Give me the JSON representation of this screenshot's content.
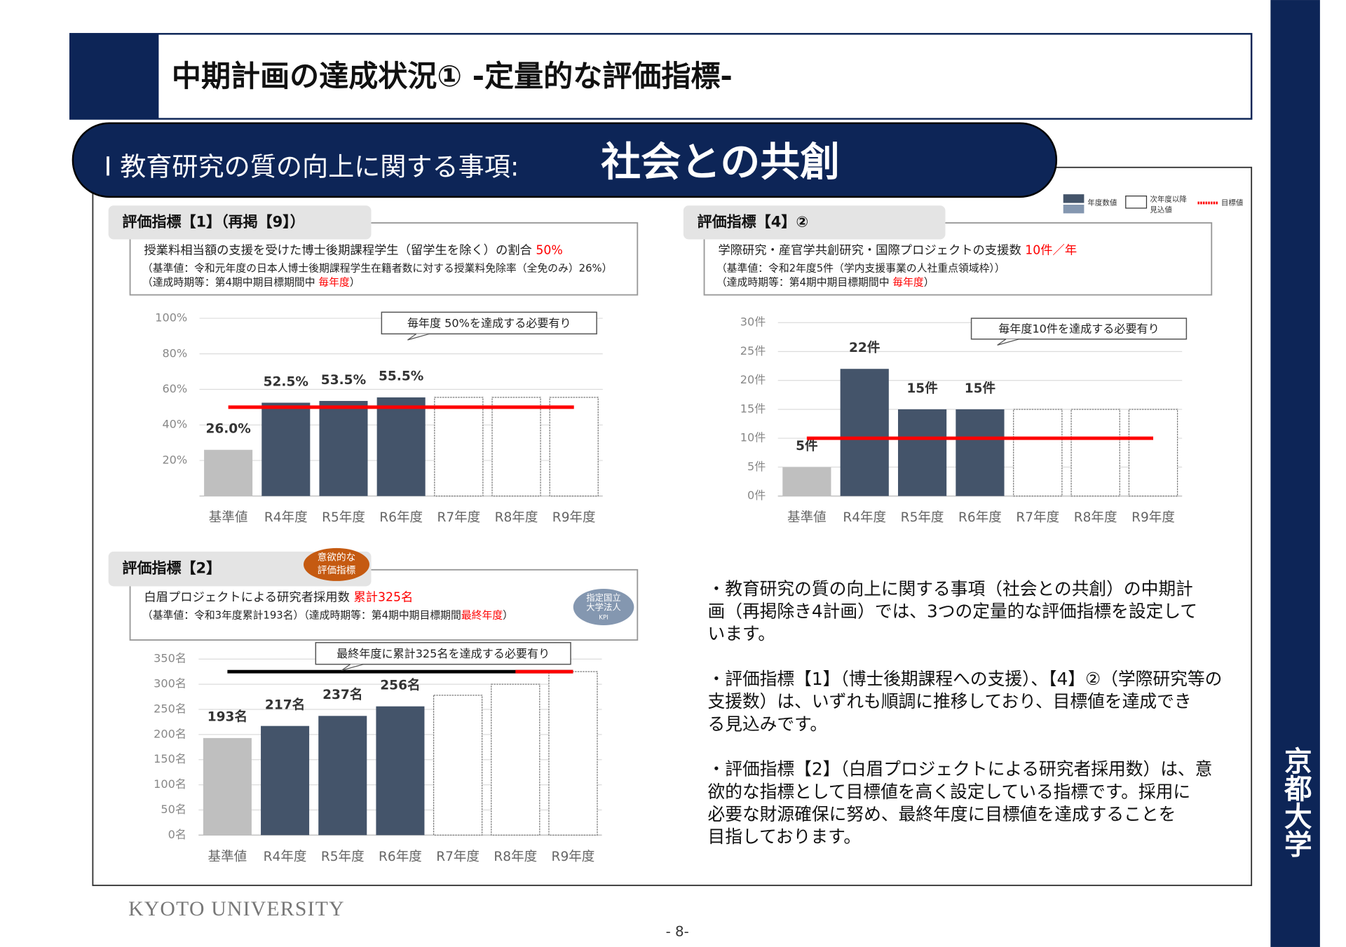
{
  "header": {
    "title": "中期計画の達成状況①  -定量的な評価指標-"
  },
  "section": {
    "label": "Ⅰ  教育研究の質の向上に関する事項:",
    "emphasis": "社会との共創"
  },
  "legend": [
    {
      "lines": [
        "年度数値"
      ]
    },
    {
      "lines": [
        "次年度以降",
        "見込値"
      ]
    },
    {
      "lines": [
        "目標値"
      ]
    }
  ],
  "chart_data": [
    {
      "type": "bar",
      "indicator": "評価指標【1】（再掲【9】）",
      "description": [
        {
          "text": "授業料相当額の支援を受けた博士後期課程学生（留学生を除く）の割合 "
        },
        {
          "text": "50%",
          "highlight": true
        }
      ],
      "notes": [
        [
          {
            "text": "（基準値：令和元年度の日本人博士後期課程学生在籍者数に対する授業料免除率（全免のみ）26%）"
          }
        ],
        [
          {
            "text": "（達成時期等：第4期中期目標期間中 "
          },
          {
            "text": "毎年度",
            "highlight": true
          },
          {
            "text": "）"
          }
        ]
      ],
      "callout": "毎年度 50%を達成する必要有り",
      "categories": [
        "基準値",
        "R4年度",
        "R5年度",
        "R6年度",
        "R7年度",
        "R8年度",
        "R9年度"
      ],
      "values": [
        26.0,
        52.5,
        53.5,
        55.5,
        null,
        null,
        null
      ],
      "value_labels": [
        "26.0%",
        "52.5%",
        "53.5%",
        "55.5%",
        null,
        null,
        null
      ],
      "projected": [
        null,
        null,
        null,
        null,
        55.5,
        55.5,
        55.5
      ],
      "target": 50,
      "ylim": [
        0,
        100
      ],
      "yticks": [
        {
          "value": 20,
          "label": "20%"
        },
        {
          "value": 40,
          "label": "40%"
        },
        {
          "value": 60,
          "label": "60%"
        },
        {
          "value": 80,
          "label": "80%"
        },
        {
          "value": 100,
          "label": "100%"
        }
      ],
      "grid": true,
      "color": "#44546a",
      "baseline_color": "#bfbfbf",
      "target_color": "#ff0000"
    },
    {
      "type": "bar",
      "indicator": "評価指標【4】②",
      "description": [
        {
          "text": "学際研究・産官学共創研究・国際プロジェクトの支援数 "
        },
        {
          "text": "10件／年",
          "highlight": true
        }
      ],
      "notes": [
        [
          {
            "text": "（基準値：令和2年度5件（学内支援事業の人社重点領域枠））"
          }
        ],
        [
          {
            "text": "（達成時期等：第4期中期目標期間中 "
          },
          {
            "text": "毎年度",
            "highlight": true
          },
          {
            "text": "）"
          }
        ]
      ],
      "callout": "毎年度10件を達成する必要有り",
      "categories": [
        "基準値",
        "R4年度",
        "R5年度",
        "R6年度",
        "R7年度",
        "R8年度",
        "R9年度"
      ],
      "values": [
        5,
        22,
        15,
        15,
        null,
        null,
        null
      ],
      "value_labels": [
        "5件",
        "22件",
        "15件",
        "15件",
        null,
        null,
        null
      ],
      "projected": [
        null,
        null,
        null,
        null,
        15,
        15,
        15
      ],
      "target": 10,
      "ylim": [
        0,
        30
      ],
      "yticks": [
        {
          "value": 0,
          "label": "0件"
        },
        {
          "value": 5,
          "label": "5件"
        },
        {
          "value": 10,
          "label": "10件"
        },
        {
          "value": 15,
          "label": "15件"
        },
        {
          "value": 20,
          "label": "20件"
        },
        {
          "value": 25,
          "label": "25件"
        },
        {
          "value": 30,
          "label": "30件"
        }
      ],
      "grid": true,
      "color": "#44546a",
      "baseline_color": "#bfbfbf",
      "target_color": "#ff0000"
    },
    {
      "type": "bar",
      "indicator": "評価指標【2】",
      "badge": [
        "意欲的な",
        "評価指標"
      ],
      "kpi": [
        "指定国立",
        "大学法人",
        "KPI"
      ],
      "description": [
        {
          "text": "白眉プロジェクトによる研究者採用数 "
        },
        {
          "text": "累計325名",
          "highlight": true
        }
      ],
      "notes": [
        [
          {
            "text": "（基準値：令和3年度累計193名）（達成時期等：第4期中期目標期間"
          },
          {
            "text": "最終年度",
            "highlight": true
          },
          {
            "text": "）"
          }
        ]
      ],
      "callout": "最終年度に累計325名を達成する必要有り",
      "categories": [
        "基準値",
        "R4年度",
        "R5年度",
        "R6年度",
        "R7年度",
        "R8年度",
        "R9年度"
      ],
      "values": [
        193,
        217,
        237,
        256,
        null,
        null,
        null
      ],
      "value_labels": [
        "193名",
        "217名",
        "237名",
        "256名",
        null,
        null,
        null
      ],
      "projected": [
        null,
        null,
        null,
        null,
        278,
        300,
        325
      ],
      "target": 325,
      "ylim": [
        0,
        350
      ],
      "yticks": [
        {
          "value": 0,
          "label": "0名"
        },
        {
          "value": 50,
          "label": "50名"
        },
        {
          "value": 100,
          "label": "100名"
        },
        {
          "value": 150,
          "label": "150名"
        },
        {
          "value": 200,
          "label": "200名"
        },
        {
          "value": 250,
          "label": "250名"
        },
        {
          "value": 300,
          "label": "300名"
        },
        {
          "value": 350,
          "label": "350名"
        }
      ],
      "grid": true,
      "color": "#44546a",
      "baseline_color": "#bfbfbf",
      "target_color": "#ff0000"
    }
  ],
  "summary": [
    [
      "・教育研究の質の向上に関する事項（社会との共創）の中期計",
      "画（再掲除き4計画）では、3つの定量的な評価指標を設定して",
      "います。"
    ],
    [
      "・評価指標【1】（博士後期課程への支援）、【4】②（学際研究等の",
      "支援数）は、いずれも順調に推移しており、目標値を達成でき",
      "る見込みです。"
    ],
    [
      "・評価指標【2】（白眉プロジェクトによる研究者採用数）は、意",
      "欲的な指標として目標値を高く設定している指標です。採用に",
      "必要な財源確保に努め、最終年度に目標値を達成することを",
      "目指しております。"
    ]
  ],
  "footer": {
    "university": "KYOTO UNIVERSITY",
    "page": "- 8-",
    "side": "京都大学"
  }
}
